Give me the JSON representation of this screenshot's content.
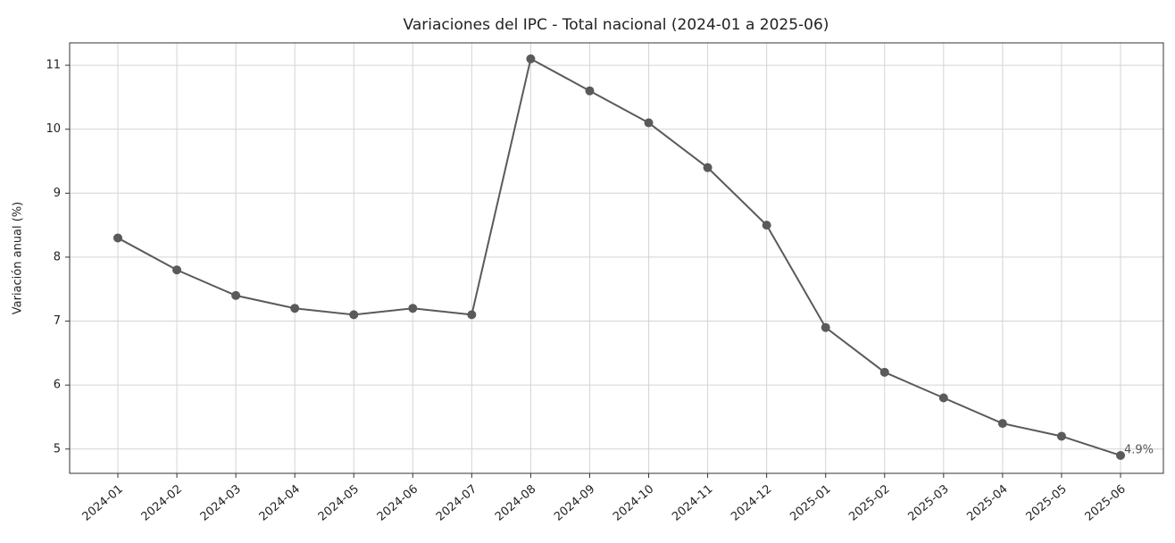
{
  "chart_data": {
    "type": "line",
    "title": "Variaciones del IPC - Total nacional (2024-01 a 2025-06)",
    "y_label": "Variación anual (%)",
    "categories": [
      "2024-01",
      "2024-02",
      "2024-03",
      "2024-04",
      "2024-05",
      "2024-06",
      "2024-07",
      "2024-08",
      "2024-09",
      "2024-10",
      "2024-11",
      "2024-12",
      "2025-01",
      "2025-02",
      "2025-03",
      "2025-04",
      "2025-05",
      "2025-06"
    ],
    "values": [
      8.3,
      7.8,
      7.4,
      7.2,
      7.1,
      7.2,
      7.1,
      11.1,
      10.6,
      10.1,
      9.4,
      8.5,
      6.9,
      6.2,
      5.8,
      5.4,
      5.2,
      4.9
    ],
    "value_labels": [
      null,
      null,
      null,
      null,
      null,
      null,
      null,
      null,
      null,
      null,
      null,
      null,
      null,
      null,
      null,
      null,
      null,
      "4.9%"
    ],
    "color": "#5a5a5a",
    "ylim": [
      4.62,
      11.35
    ],
    "yticks": [
      5,
      6,
      7,
      8,
      9,
      10,
      11
    ],
    "grid": true
  }
}
